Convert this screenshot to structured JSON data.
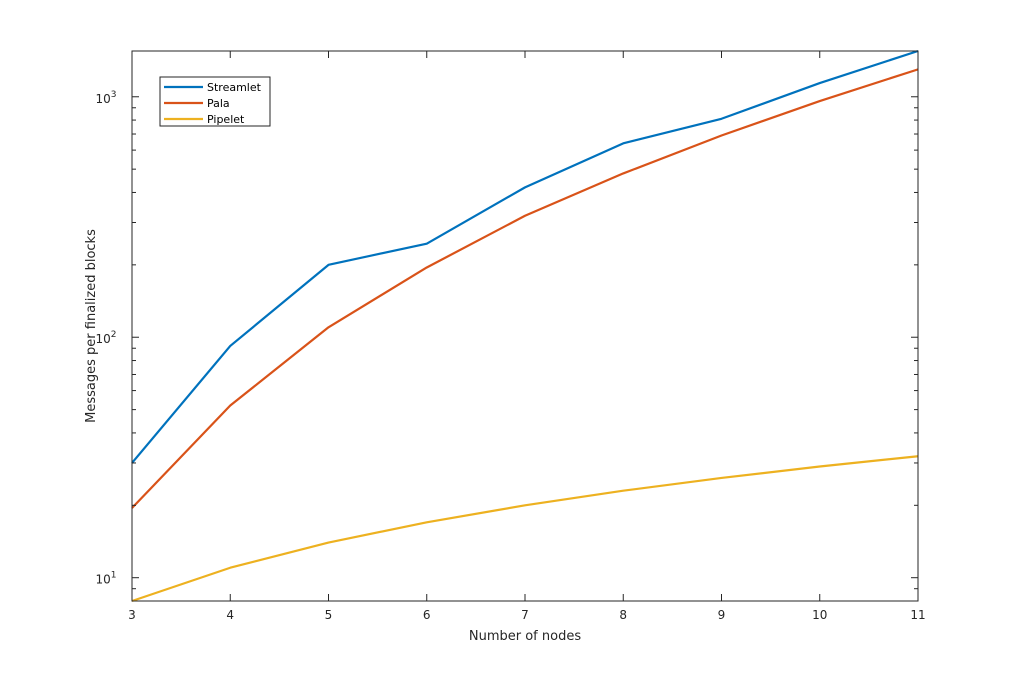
{
  "chart_data": {
    "type": "line",
    "title": "",
    "xlabel": "Number of nodes",
    "ylabel": "Messages per finalized blocks",
    "x": [
      3,
      4,
      5,
      6,
      7,
      8,
      9,
      10,
      11
    ],
    "xlim": [
      3,
      11
    ],
    "yscale": "log",
    "ylim": [
      8,
      1550
    ],
    "x_ticks": [
      "3",
      "4",
      "5",
      "6",
      "7",
      "8",
      "9",
      "10",
      "11"
    ],
    "y_ticks": [
      {
        "base": "10",
        "exp": "1",
        "value": 10
      },
      {
        "base": "10",
        "exp": "2",
        "value": 100
      },
      {
        "base": "10",
        "exp": "3",
        "value": 1000
      }
    ],
    "grid": false,
    "legend_position": "top-left",
    "series": [
      {
        "name": "Streamlet",
        "color": "#0072BD",
        "values": [
          30,
          92,
          200,
          245,
          420,
          640,
          810,
          1140,
          1550
        ]
      },
      {
        "name": "Pala",
        "color": "#D95319",
        "values": [
          19.5,
          52,
          110,
          195,
          320,
          480,
          690,
          960,
          1300
        ]
      },
      {
        "name": "Pipelet",
        "color": "#EDB120",
        "values": [
          8,
          11,
          14,
          17,
          20,
          23,
          26,
          29,
          32
        ]
      }
    ]
  }
}
